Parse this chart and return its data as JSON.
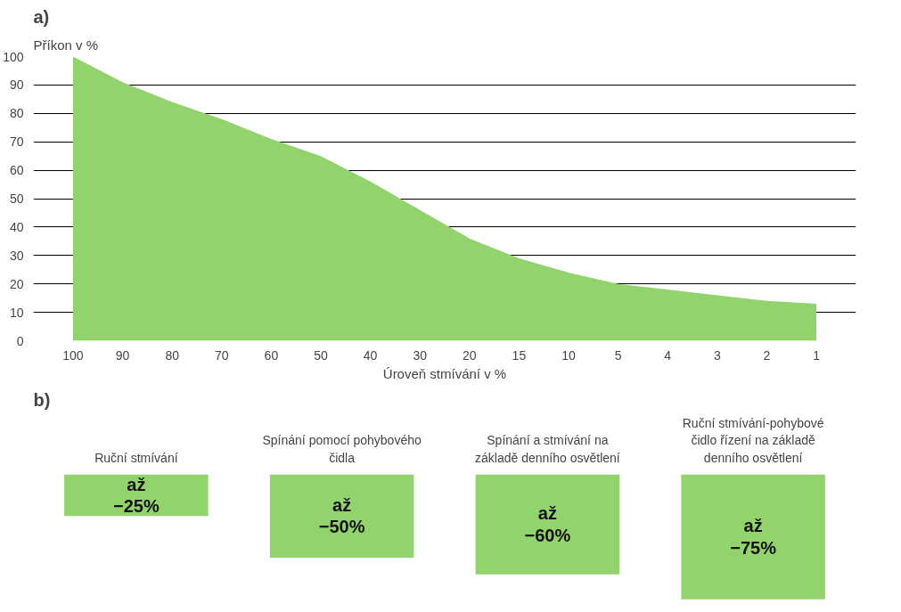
{
  "chart_data": [
    {
      "type": "area",
      "title": "a)",
      "ylabel": "Příkon v %",
      "xlabel": "Úroveň stmívání v %",
      "categories": [
        "100",
        "90",
        "80",
        "70",
        "60",
        "50",
        "40",
        "30",
        "20",
        "15",
        "10",
        "5",
        "4",
        "3",
        "2",
        "1"
      ],
      "values": [
        100,
        91,
        84,
        78,
        71,
        65,
        56,
        46,
        36,
        29,
        24,
        20,
        18,
        16,
        14,
        13
      ],
      "color": "#93d36e",
      "ylim": [
        0,
        100
      ],
      "yticks": [
        0,
        10,
        20,
        30,
        40,
        50,
        60,
        70,
        80,
        90,
        100
      ],
      "grid": "y"
    },
    {
      "type": "bar",
      "title": "b)",
      "categories": [
        "Ruční stmívání",
        "Spínání pomocí pohybového čidla",
        "Spínání a stmívání na základě denního osvětlení",
        "Ruční stmívání-pohybové čidlo řízení na základě denního osvětlení"
      ],
      "values": [
        -25,
        -50,
        -60,
        -75
      ],
      "color": "#93d36e",
      "value_labels": [
        "až\n−25%",
        "až\n−50%",
        "až\n−60%",
        "až\n−75%"
      ],
      "tick_labels": "x"
    }
  ]
}
